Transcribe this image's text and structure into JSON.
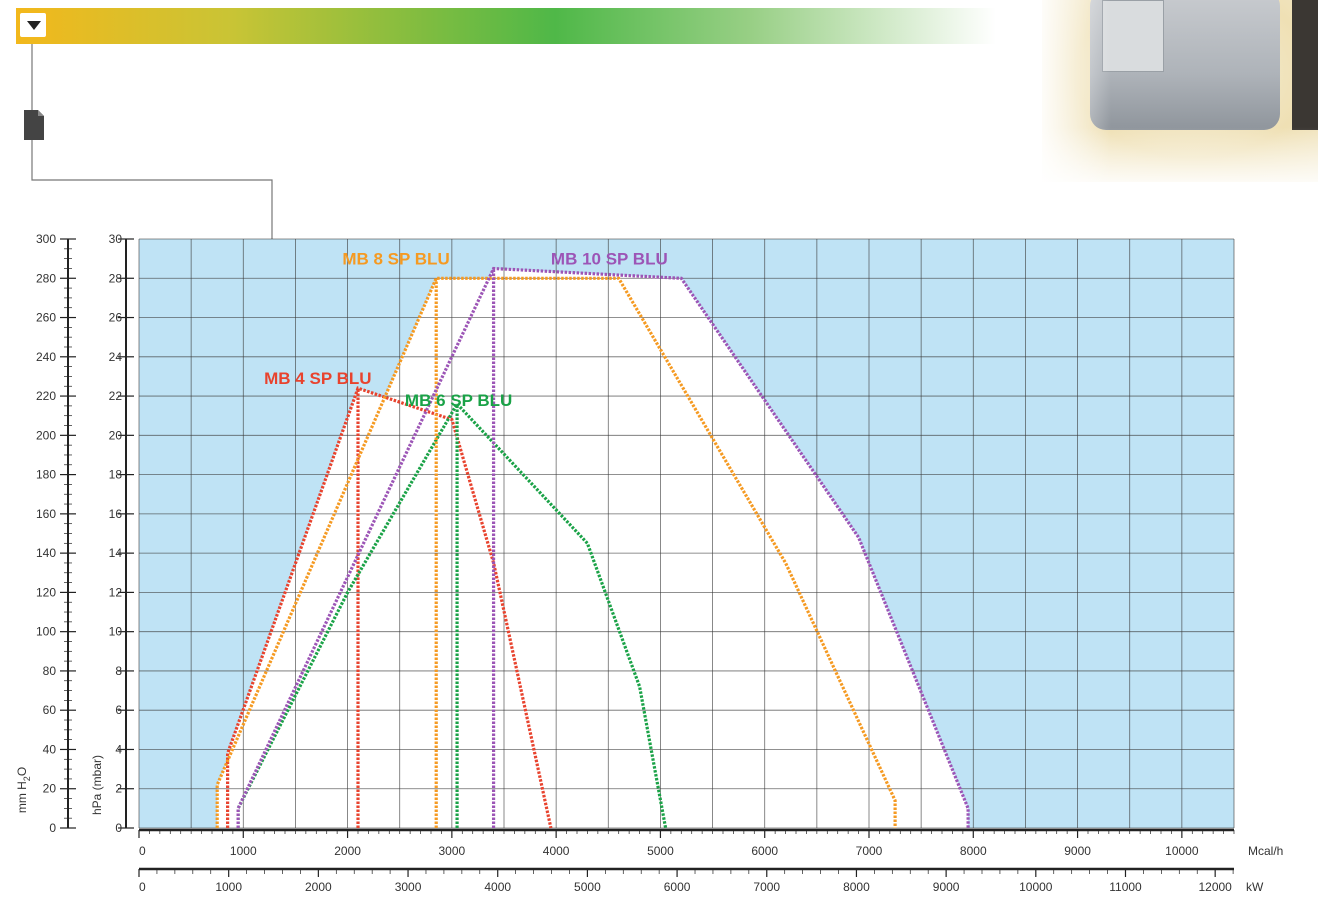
{
  "header": {
    "gradient_colors": [
      "#f2b81c",
      "#4fb848",
      "#ffffff"
    ]
  },
  "icons": {
    "dropdown": "dropdown-arrow-icon",
    "document": "document-icon"
  },
  "chart_data": {
    "type": "line",
    "colors": {
      "plot_bg": "#bfe3f5",
      "envelope_fill": "#ffffff",
      "grid": "#3a3a3a"
    },
    "axes": {
      "x_mcal": {
        "unit": "Mcal/h",
        "range": [
          0,
          10500
        ],
        "major_ticks": [
          0,
          1000,
          2000,
          3000,
          4000,
          5000,
          6000,
          7000,
          8000,
          9000,
          10000
        ],
        "minor_step": 100
      },
      "x_kw": {
        "unit": "kW",
        "range": [
          0,
          12210
        ],
        "major_ticks": [
          0,
          1000,
          2000,
          3000,
          4000,
          5000,
          6000,
          7000,
          8000,
          9000,
          10000,
          11000,
          12000
        ],
        "minor_step": 200
      },
      "y_hpa": {
        "label": "hPa (mbar)",
        "range": [
          0,
          30
        ],
        "ticks": [
          0,
          2,
          4,
          6,
          8,
          10,
          12,
          14,
          16,
          18,
          20,
          22,
          24,
          26,
          28,
          30
        ]
      },
      "y_mm": {
        "label": "mm H2O",
        "label_main": "mm H",
        "label_sub": "2",
        "label_end": "O",
        "range": [
          0,
          300
        ],
        "ticks": [
          0,
          20,
          40,
          60,
          80,
          100,
          120,
          140,
          160,
          180,
          200,
          220,
          240,
          260,
          280,
          300
        ]
      }
    },
    "grid": true,
    "series": [
      {
        "name": "MB 4 SP BLU",
        "color": "#e8432e",
        "label_at": {
          "x": 1200,
          "y": 22.4
        },
        "points": [
          [
            850,
            0
          ],
          [
            850,
            3.8
          ],
          [
            2100,
            22.4
          ],
          [
            3000,
            20.8
          ],
          [
            3400,
            13.5
          ],
          [
            3950,
            0
          ]
        ],
        "divider_x": 2100
      },
      {
        "name": "MB 6 SP BLU",
        "color": "#1aa247",
        "label_at": {
          "x": 2550,
          "y": 21.3
        },
        "points": [
          [
            950,
            0
          ],
          [
            950,
            1.0
          ],
          [
            2000,
            12.0
          ],
          [
            3050,
            21.6
          ],
          [
            4300,
            14.5
          ],
          [
            4800,
            7.2
          ],
          [
            5050,
            0
          ]
        ],
        "divider_x": 3050
      },
      {
        "name": "MB 8 SP BLU",
        "color": "#f59a22",
        "label_at": {
          "x": 1950,
          "y": 28.5
        },
        "points": [
          [
            750,
            0
          ],
          [
            750,
            2.2
          ],
          [
            2850,
            28.0
          ],
          [
            4600,
            28.0
          ],
          [
            6200,
            13.5
          ],
          [
            7250,
            1.4
          ],
          [
            7250,
            0
          ]
        ],
        "divider_x": 2850
      },
      {
        "name": "MB 10 SP BLU",
        "color": "#9c55b6",
        "label_at": {
          "x": 3950,
          "y": 28.5
        },
        "points": [
          [
            950,
            0
          ],
          [
            950,
            1.0
          ],
          [
            3400,
            28.5
          ],
          [
            5200,
            28.0
          ],
          [
            6900,
            14.8
          ],
          [
            7950,
            1.0
          ],
          [
            7950,
            0
          ]
        ],
        "divider_x": 3400
      }
    ]
  }
}
